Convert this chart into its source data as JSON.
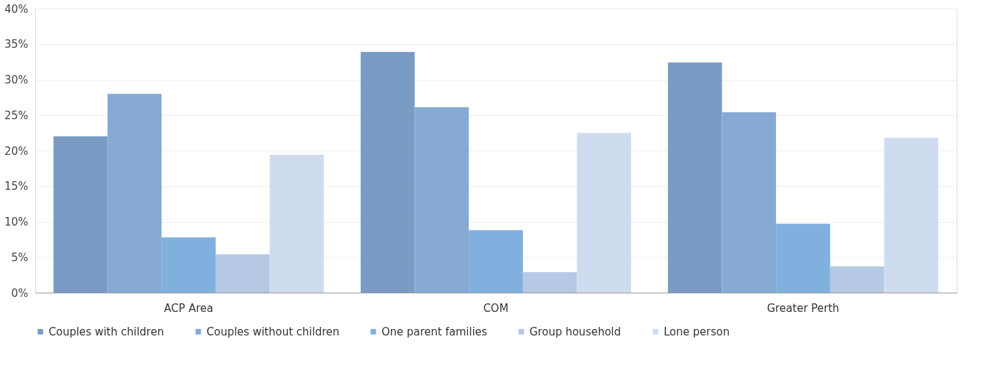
{
  "chart_data": {
    "type": "bar",
    "categories": [
      "ACP Area",
      "COM",
      "Greater Perth"
    ],
    "series": [
      {
        "name": "Couples with children",
        "color": "#7a9cc4",
        "values": [
          22,
          33.9,
          32.4
        ]
      },
      {
        "name": "Couples without children",
        "color": "#86aad3",
        "values": [
          28,
          26.1,
          25.4
        ]
      },
      {
        "name": "One parent families",
        "color": "#80b0de",
        "values": [
          7.8,
          8.8,
          9.7
        ]
      },
      {
        "name": "Group household",
        "color": "#b5c8e4",
        "values": [
          5.4,
          2.9,
          3.7
        ]
      },
      {
        "name": "Lone person",
        "color": "#cfdcef",
        "values": [
          19.4,
          22.5,
          21.8
        ]
      }
    ],
    "ylim": [
      0,
      40
    ],
    "yticks": [
      {
        "value": 0,
        "label": "0%"
      },
      {
        "value": 5,
        "label": "5%"
      },
      {
        "value": 10,
        "label": "10%"
      },
      {
        "value": 15,
        "label": "15%"
      },
      {
        "value": 20,
        "label": "20%"
      },
      {
        "value": 25,
        "label": "25%"
      },
      {
        "value": 30,
        "label": "30%"
      },
      {
        "value": 35,
        "label": "35%"
      },
      {
        "value": 40,
        "label": "40%"
      }
    ],
    "grid": "y",
    "legend": "bottom"
  }
}
